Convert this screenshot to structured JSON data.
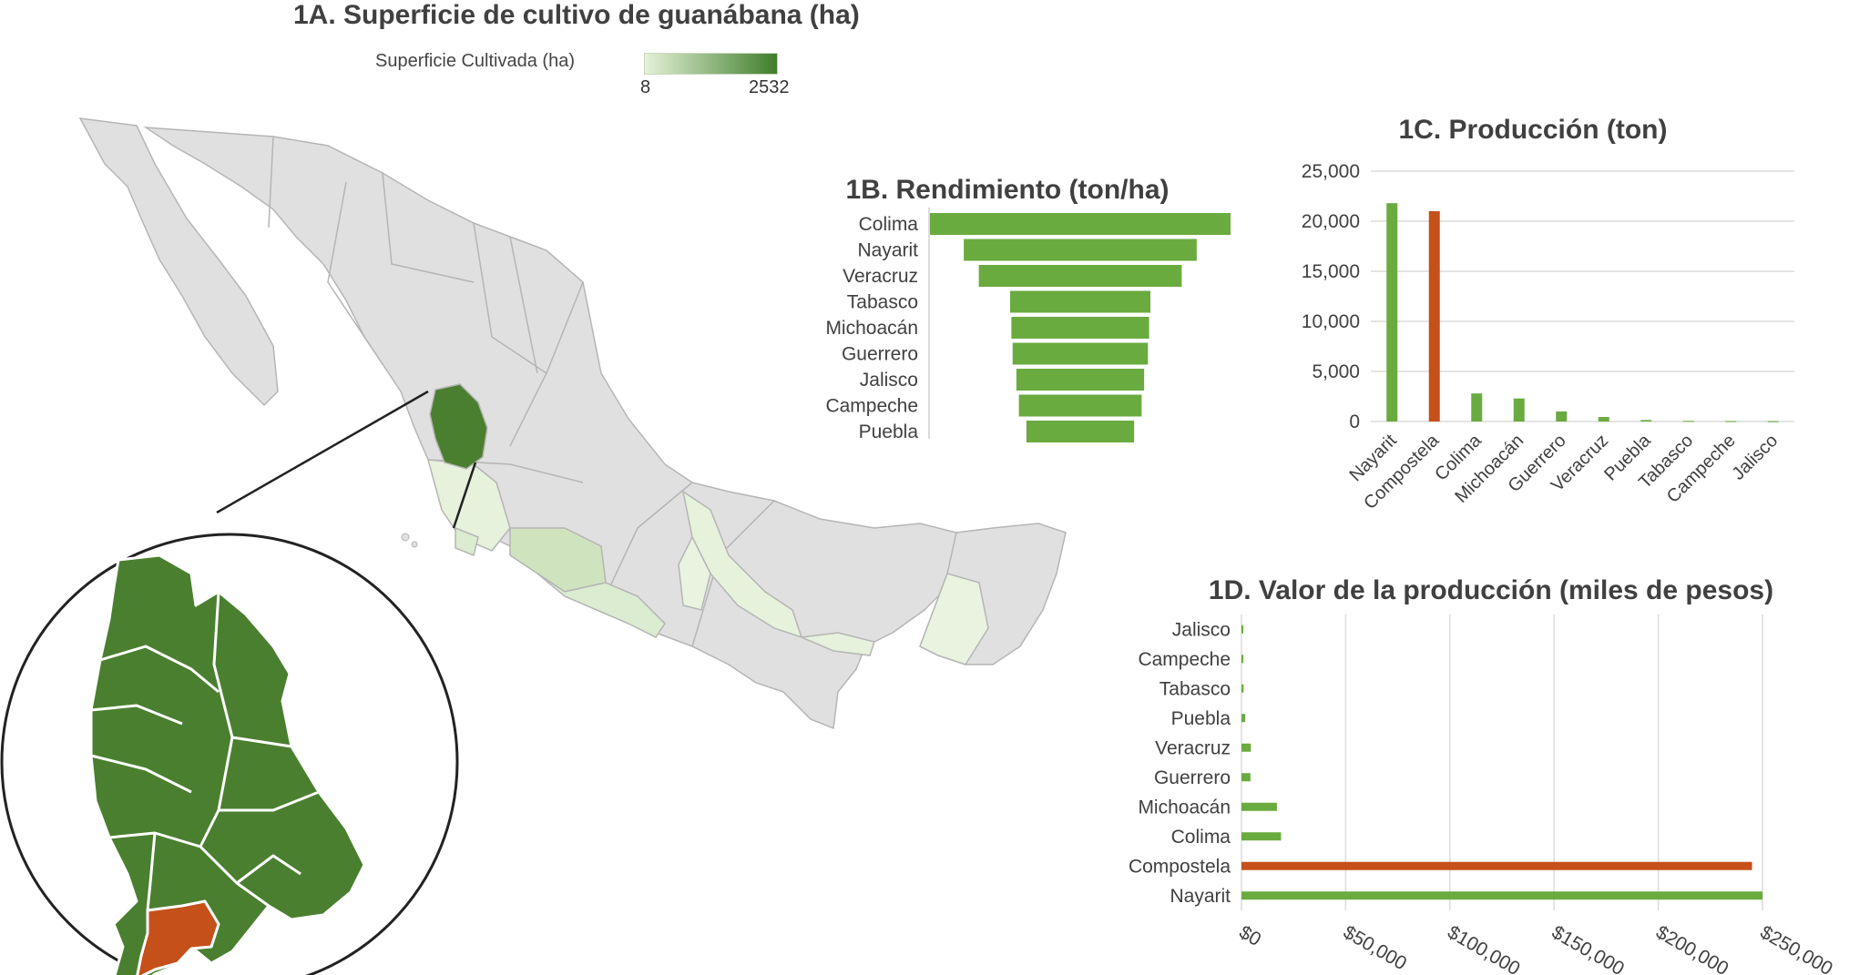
{
  "panel_1a": {
    "title": "1A. Superficie de cultivo de guanábana (ha)",
    "legend_label": "Superficie Cultivada (ha)",
    "legend_min": "8",
    "legend_max": "2532",
    "legend_colors": [
      "#e4f1d8",
      "#3f7e2b"
    ],
    "colors": {
      "base_state": "#e0e0e0",
      "nayarit": "#4a7f2f",
      "compostela": "#c5501a"
    }
  },
  "chart_data": [
    {
      "id": "1B",
      "type": "bar",
      "orientation": "horizontal-funnel",
      "title": "1B. Rendimiento (ton/ha)",
      "categories": [
        "Colima",
        "Nayarit",
        "Veracruz",
        "Tabasco",
        "Michoacán",
        "Guerrero",
        "Jalisco",
        "Campeche",
        "Puebla"
      ],
      "values": [
        12.0,
        9.3,
        8.1,
        5.6,
        5.5,
        5.4,
        5.1,
        4.9,
        4.3
      ],
      "colors": [
        "#6aab3f"
      ]
    },
    {
      "id": "1C",
      "type": "bar",
      "title": "1C. Producción (ton)",
      "categories": [
        "Nayarit",
        "Compostela",
        "Colima",
        "Michoacán",
        "Guerrero",
        "Veracruz",
        "Puebla",
        "Tabasco",
        "Campeche",
        "Jalisco"
      ],
      "values": [
        21800,
        21000,
        2800,
        2300,
        1000,
        450,
        150,
        60,
        40,
        30
      ],
      "highlight": "Compostela",
      "ylim": [
        0,
        25000
      ],
      "yticks": [
        "0",
        "5,000",
        "10,000",
        "15,000",
        "20,000",
        "25,000"
      ],
      "grid": true,
      "colors": {
        "default": "#6aab3f",
        "highlight": "#c5501a"
      }
    },
    {
      "id": "1D",
      "type": "bar",
      "orientation": "horizontal",
      "title": "1D. Valor de la producción (miles de pesos)",
      "categories": [
        "Jalisco",
        "Campeche",
        "Tabasco",
        "Puebla",
        "Veracruz",
        "Guerrero",
        "Michoacán",
        "Colima",
        "Compostela",
        "Nayarit"
      ],
      "values": [
        800,
        900,
        1000,
        1800,
        4500,
        4300,
        17000,
        19000,
        245000,
        250000
      ],
      "highlight": "Compostela",
      "xlim": [
        0,
        250000
      ],
      "xticks": [
        "$0",
        "$50,000",
        "$100,000",
        "$150,000",
        "$200,000",
        "$250,000"
      ],
      "grid": true,
      "colors": {
        "default": "#6aab3f",
        "highlight": "#c5501a"
      }
    }
  ]
}
